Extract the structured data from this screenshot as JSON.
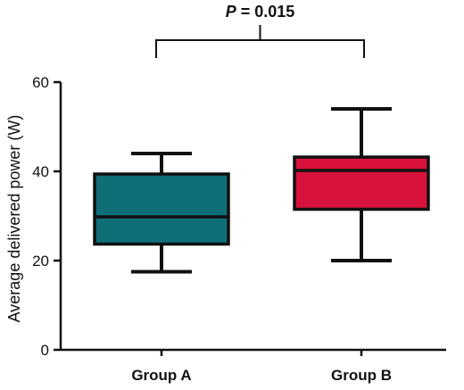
{
  "chart_data": {
    "type": "box",
    "ylabel": "Average delivered power (W)",
    "xlabel": "",
    "ylim": [
      0,
      60
    ],
    "yticks": [
      0,
      20,
      40,
      60
    ],
    "categories": [
      "Group A",
      "Group B"
    ],
    "series": [
      {
        "category": "Group A",
        "min": 17.5,
        "q1": 23.7,
        "median": 29.8,
        "q3": 39.4,
        "max": 44.0,
        "color": "#0F6F78"
      },
      {
        "category": "Group B",
        "min": 20.0,
        "q1": 31.5,
        "median": 40.2,
        "q3": 43.2,
        "max": 54.0,
        "color": "#D8123C"
      }
    ],
    "annotation": {
      "p_symbol": "P",
      "p_text": " = 0.015"
    },
    "grid": false,
    "legend": "none"
  }
}
